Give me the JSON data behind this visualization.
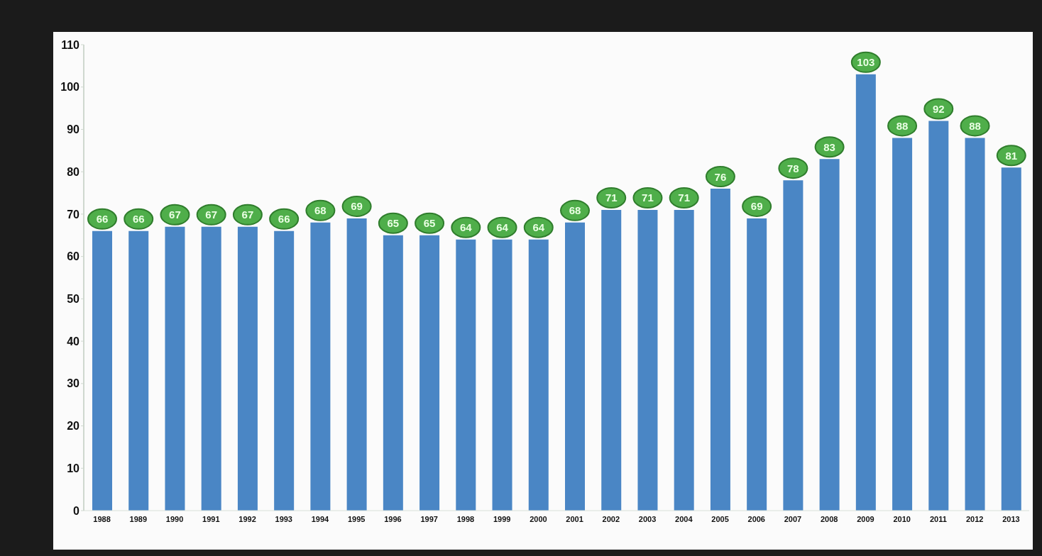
{
  "chart_data": {
    "type": "bar",
    "categories": [
      "1988",
      "1989",
      "1990",
      "1991",
      "1992",
      "1993",
      "1994",
      "1995",
      "1996",
      "1997",
      "1998",
      "1999",
      "2000",
      "2001",
      "2002",
      "2003",
      "2004",
      "2005",
      "2006",
      "2007",
      "2008",
      "2009",
      "2010",
      "2011",
      "2012",
      "2013"
    ],
    "values": [
      66,
      66,
      67,
      67,
      67,
      66,
      68,
      69,
      65,
      65,
      64,
      64,
      64,
      68,
      71,
      71,
      71,
      76,
      69,
      78,
      83,
      103,
      88,
      92,
      88,
      81
    ],
    "color": "#4a86c5",
    "ylim": [
      0,
      110
    ],
    "yticks": [
      0,
      10,
      20,
      30,
      40,
      50,
      60,
      70,
      80,
      90,
      100,
      110
    ],
    "data_labels": true
  }
}
